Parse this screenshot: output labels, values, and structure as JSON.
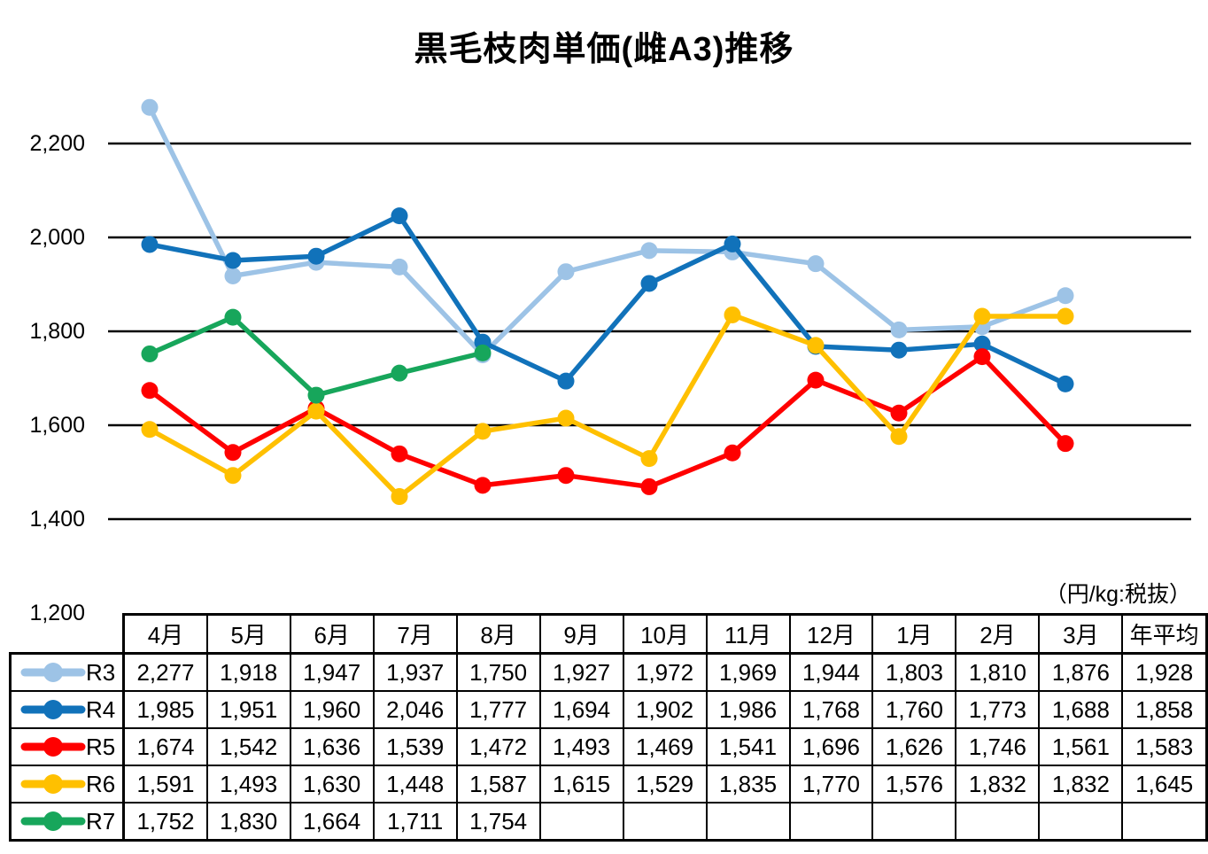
{
  "title": "黒毛枝肉単価(雌A3)推移",
  "unit_label": "（円/kg:税抜）",
  "chart_data": {
    "type": "line",
    "categories": [
      "4月",
      "5月",
      "6月",
      "7月",
      "8月",
      "9月",
      "10月",
      "11月",
      "12月",
      "1月",
      "2月",
      "3月"
    ],
    "average_column_label": "年平均",
    "yticks": [
      1200,
      1400,
      1600,
      1800,
      2000,
      2200
    ],
    "ylim": [
      1200,
      2300
    ],
    "grid": true,
    "legend_position": "table-left",
    "series": [
      {
        "name": "R3",
        "color": "#9DC3E6",
        "values": [
          2277,
          1918,
          1947,
          1937,
          1750,
          1927,
          1972,
          1969,
          1944,
          1803,
          1810,
          1876
        ],
        "average": 1928
      },
      {
        "name": "R4",
        "color": "#1172BA",
        "values": [
          1985,
          1951,
          1960,
          2046,
          1777,
          1694,
          1902,
          1986,
          1768,
          1760,
          1773,
          1688
        ],
        "average": 1858
      },
      {
        "name": "R5",
        "color": "#FF0000",
        "values": [
          1674,
          1542,
          1636,
          1539,
          1472,
          1493,
          1469,
          1541,
          1696,
          1626,
          1746,
          1561
        ],
        "average": 1583
      },
      {
        "name": "R6",
        "color": "#FFC000",
        "values": [
          1591,
          1493,
          1630,
          1448,
          1587,
          1615,
          1529,
          1835,
          1770,
          1576,
          1832,
          1832
        ],
        "average": 1645
      },
      {
        "name": "R7",
        "color": "#17A65B",
        "values": [
          1752,
          1830,
          1664,
          1711,
          1754,
          null,
          null,
          null,
          null,
          null,
          null,
          null
        ],
        "average": null
      }
    ]
  }
}
